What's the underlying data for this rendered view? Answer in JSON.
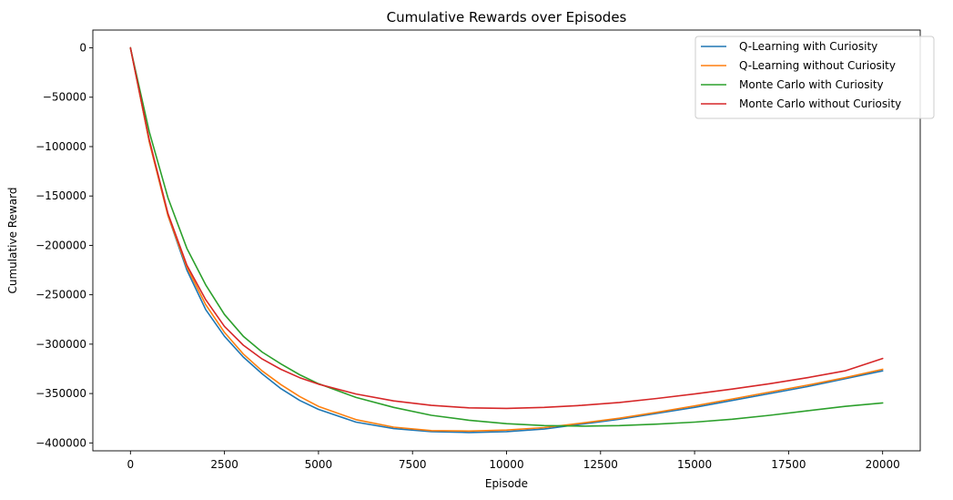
{
  "chart_data": {
    "type": "line",
    "title": "Cumulative Rewards over Episodes",
    "xlabel": "Episode",
    "ylabel": "Cumulative Reward",
    "xlim": [
      -1000,
      21000
    ],
    "ylim": [
      -408000,
      18000
    ],
    "x_ticks": [
      0,
      2500,
      5000,
      7500,
      10000,
      12500,
      15000,
      17500,
      20000
    ],
    "x_tick_labels": [
      "0",
      "2500",
      "5000",
      "7500",
      "10000",
      "12500",
      "15000",
      "17500",
      "20000"
    ],
    "y_ticks": [
      0,
      -50000,
      -100000,
      -150000,
      -200000,
      -250000,
      -300000,
      -350000,
      -400000
    ],
    "y_tick_labels": [
      "0",
      "−50000",
      "−100000",
      "−150000",
      "−200000",
      "−250000",
      "−300000",
      "−350000",
      "−400000"
    ],
    "grid": false,
    "legend_position": "top-right",
    "x": [
      0,
      500,
      1000,
      1500,
      2000,
      2500,
      3000,
      3500,
      4000,
      4500,
      5000,
      6000,
      7000,
      8000,
      9000,
      10000,
      11000,
      12000,
      13000,
      14000,
      15000,
      16000,
      17000,
      18000,
      19000,
      20000
    ],
    "series": [
      {
        "name": "Q-Learning with Curiosity",
        "color": "#1f77b4",
        "values": [
          0,
          -95000,
          -170000,
          -225000,
          -265000,
          -292000,
          -313000,
          -330000,
          -345000,
          -357000,
          -366000,
          -379000,
          -385500,
          -388500,
          -389500,
          -388500,
          -386000,
          -381000,
          -376000,
          -370000,
          -364000,
          -357000,
          -350000,
          -343000,
          -335000,
          -327000
        ]
      },
      {
        "name": "Q-Learning without Curiosity",
        "color": "#ff7f0e",
        "values": [
          0,
          -95000,
          -170000,
          -222000,
          -260000,
          -288000,
          -310000,
          -327000,
          -341000,
          -353000,
          -363000,
          -376500,
          -384000,
          -387500,
          -388000,
          -387000,
          -384500,
          -380000,
          -375000,
          -369000,
          -362500,
          -355500,
          -348500,
          -341500,
          -334000,
          -325500
        ]
      },
      {
        "name": "Monte Carlo with Curiosity",
        "color": "#2ca02c",
        "values": [
          0,
          -85000,
          -152000,
          -203000,
          -240000,
          -270000,
          -292000,
          -308000,
          -320000,
          -331000,
          -340000,
          -354000,
          -364000,
          -372000,
          -377000,
          -380500,
          -382500,
          -383000,
          -382500,
          -381000,
          -379000,
          -376000,
          -372000,
          -367500,
          -363000,
          -359500
        ]
      },
      {
        "name": "Monte Carlo without Curiosity",
        "color": "#d62728",
        "values": [
          0,
          -93000,
          -168000,
          -220000,
          -255000,
          -282000,
          -301000,
          -315000,
          -325500,
          -334000,
          -340500,
          -350500,
          -357500,
          -362000,
          -364500,
          -365000,
          -364000,
          -362000,
          -359000,
          -355000,
          -350500,
          -345500,
          -340000,
          -334000,
          -327000,
          -314500
        ]
      }
    ]
  }
}
